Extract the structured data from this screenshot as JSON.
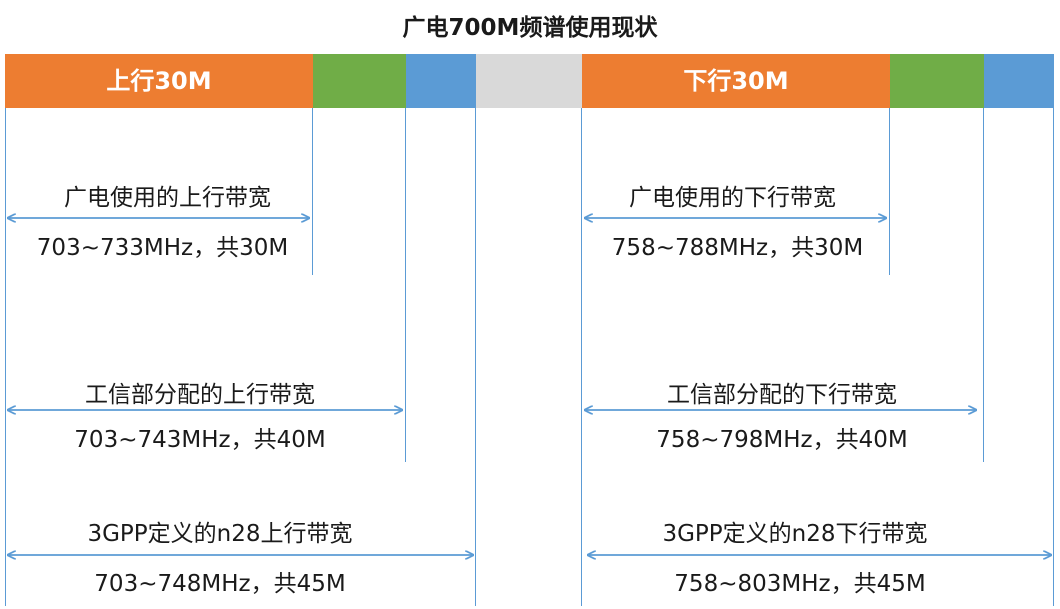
{
  "title": "广电700M频谱使用现状",
  "colors": {
    "orange": "#ed7d31",
    "green": "#70ad47",
    "blue": "#5b9bd5",
    "gray": "#d9d9d9",
    "line": "#5b9bd5"
  },
  "uplink": {
    "header": "上行30M",
    "broadcast_title": "广电使用的上行带宽",
    "broadcast_range": "703~733MHz，共30M",
    "miit_title": "工信部分配的上行带宽",
    "miit_range": "703~743MHz，共40M",
    "gpp_title": "3GPP定义的n28上行带宽",
    "gpp_range": "703~748MHz，共45M"
  },
  "downlink": {
    "header": "下行30M",
    "broadcast_title": "广电使用的下行带宽",
    "broadcast_range": "758~788MHz，共30M",
    "miit_title": "工信部分配的下行带宽",
    "miit_range": "758~798MHz，共40M",
    "gpp_title": "3GPP定义的n28下行带宽",
    "gpp_range": "758~803MHz，共45M"
  }
}
